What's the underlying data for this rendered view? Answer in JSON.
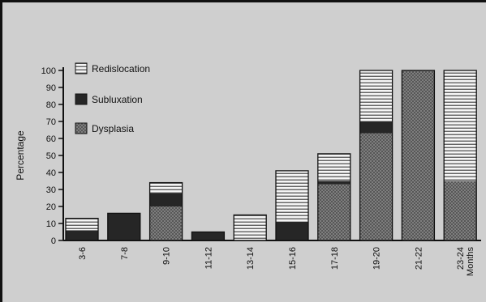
{
  "chart_data": {
    "type": "bar",
    "stacked": true,
    "ylabel": "Percentage",
    "x_unit_label": "Months",
    "ylim": [
      0,
      100
    ],
    "yticks": [
      0,
      10,
      20,
      30,
      40,
      50,
      60,
      70,
      80,
      90,
      100
    ],
    "legend_position": "top-left",
    "categories": [
      "3-6",
      "7-8",
      "9-10",
      "11-12",
      "13-14",
      "15-16",
      "17-18",
      "19-20",
      "21-22",
      "23-24"
    ],
    "series": [
      {
        "name": "Dysplasia",
        "pattern": "crosshatch",
        "color": "#7e7e7e",
        "values": [
          0,
          0,
          20,
          0,
          0,
          0,
          33,
          63,
          100,
          35
        ]
      },
      {
        "name": "Subluxation",
        "pattern": "solid",
        "color": "#262626",
        "values": [
          6,
          16,
          8,
          5,
          0,
          11,
          2,
          7,
          0,
          0
        ]
      },
      {
        "name": "Redislocation",
        "pattern": "stripes",
        "color": "#f4f4f4",
        "values": [
          7,
          0,
          6,
          0,
          15,
          30,
          16,
          30,
          0,
          65
        ]
      }
    ]
  }
}
